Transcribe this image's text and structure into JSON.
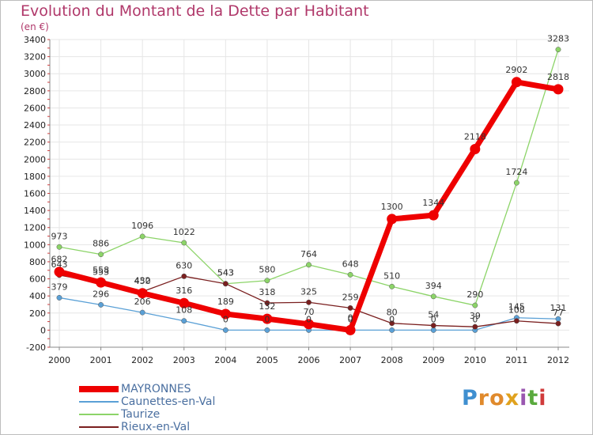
{
  "title": "Evolution du Montant de la Dette par Habitant",
  "unit_label": "(en €)",
  "logo": {
    "letters": [
      "P",
      "r",
      "o",
      "x",
      "i",
      "t",
      "i"
    ],
    "colors": [
      "#3f8fd0",
      "#e08a2c",
      "#e08a2c",
      "#e0a21e",
      "#9a57b0",
      "#5aaa3e",
      "#d03b3b"
    ]
  },
  "chart_data": {
    "type": "line",
    "title": "Evolution du Montant de la Dette par Habitant",
    "ylabel": "(en €)",
    "xlabel": "",
    "x": [
      "2000",
      "2001",
      "2002",
      "2003",
      "2004",
      "2005",
      "2006",
      "2007",
      "2008",
      "2009",
      "2010",
      "2011",
      "2012"
    ],
    "ylim": [
      -200,
      3400
    ],
    "yticks": [
      "-200",
      "0",
      "200",
      "400",
      "600",
      "800",
      "1000",
      "1200",
      "1400",
      "1600",
      "1800",
      "2000",
      "2200",
      "2400",
      "2600",
      "2800",
      "3000",
      "3200",
      "3400"
    ],
    "grid": true,
    "legend_position": "bottom-left",
    "series": [
      {
        "name": "MAYRONNES",
        "color": "#ee0000",
        "values": [
          682,
          558,
          432,
          316,
          189,
          132,
          70,
          0,
          1300,
          1344,
          2118,
          2902,
          2818
        ],
        "labels": [
          "682",
          "558",
          "432",
          "316",
          "189",
          "132",
          "70",
          "0",
          "1300",
          "1344",
          "2118",
          "2902",
          "2818"
        ]
      },
      {
        "name": "Caunettes-en-Val",
        "color": "#5aa0d6",
        "values": [
          379,
          296,
          206,
          108,
          0,
          0,
          0,
          0,
          0,
          0,
          0,
          145,
          131
        ],
        "labels": [
          "379",
          "296",
          "206",
          "108",
          "0",
          "0",
          "0",
          "0",
          "0",
          "0",
          "0",
          "145",
          "131"
        ]
      },
      {
        "name": "Taurize",
        "color": "#8cd468",
        "values": [
          973,
          886,
          1096,
          1022,
          543,
          580,
          764,
          648,
          510,
          394,
          290,
          1724,
          3283
        ],
        "labels": [
          "973",
          "886",
          "1096",
          "1022",
          "543",
          "580",
          "764",
          "648",
          "510",
          "394",
          "290",
          "1724",
          "3283"
        ]
      },
      {
        "name": "Rieux-en-Val",
        "color": "#7a1f1f",
        "values": [
          643,
          553,
          450,
          630,
          543,
          318,
          325,
          259,
          80,
          54,
          39,
          108,
          77
        ],
        "labels": [
          "643",
          "553",
          "450",
          "630",
          "543",
          "318",
          "325",
          "259",
          "80",
          "54",
          "39",
          "108",
          "77"
        ]
      }
    ]
  }
}
